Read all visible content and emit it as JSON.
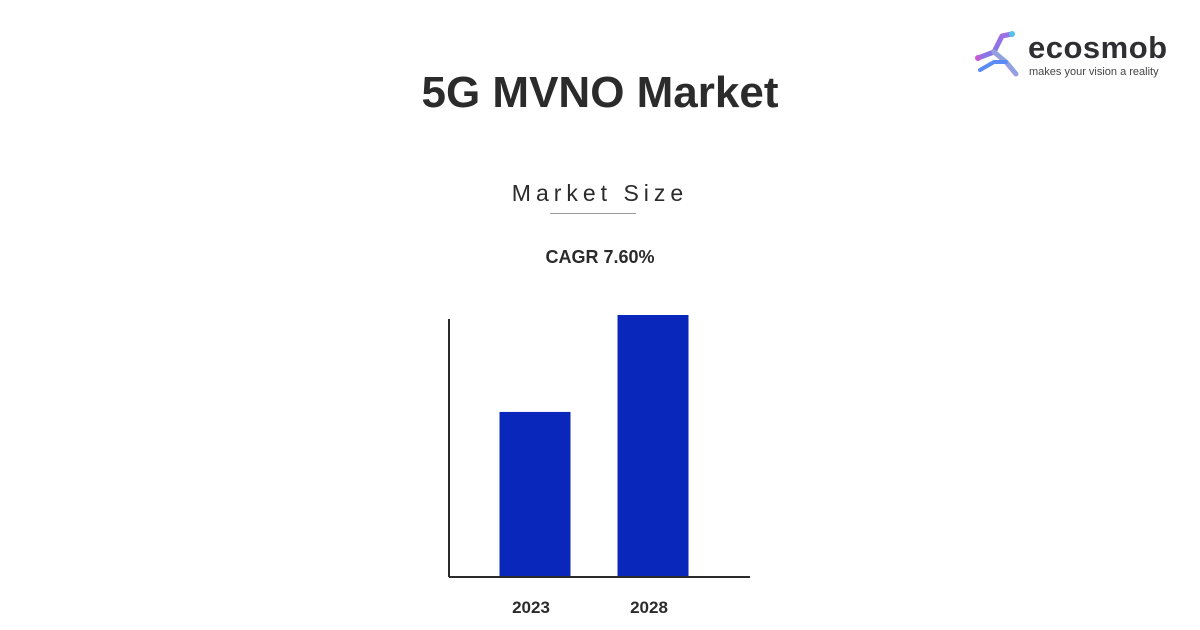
{
  "brand": {
    "name": "ecosmob",
    "tagline": "makes your vision a reality",
    "logo_icon": "ecosmob-logo-icon",
    "colors": [
      "#c75bd6",
      "#5b8cf5",
      "#4fc3e8"
    ]
  },
  "header": {
    "title": "5G MVNO Market"
  },
  "section": {
    "label": "Market Size",
    "cagr": "CAGR 7.60%"
  },
  "chart_data": {
    "type": "bar",
    "categories": [
      "2023",
      "2028"
    ],
    "values": [
      63,
      100
    ],
    "ylim": [
      0,
      100
    ],
    "grid": false,
    "legend": "none",
    "bar_color": "#0a27bb",
    "axis_color": "#2b2b2b"
  }
}
